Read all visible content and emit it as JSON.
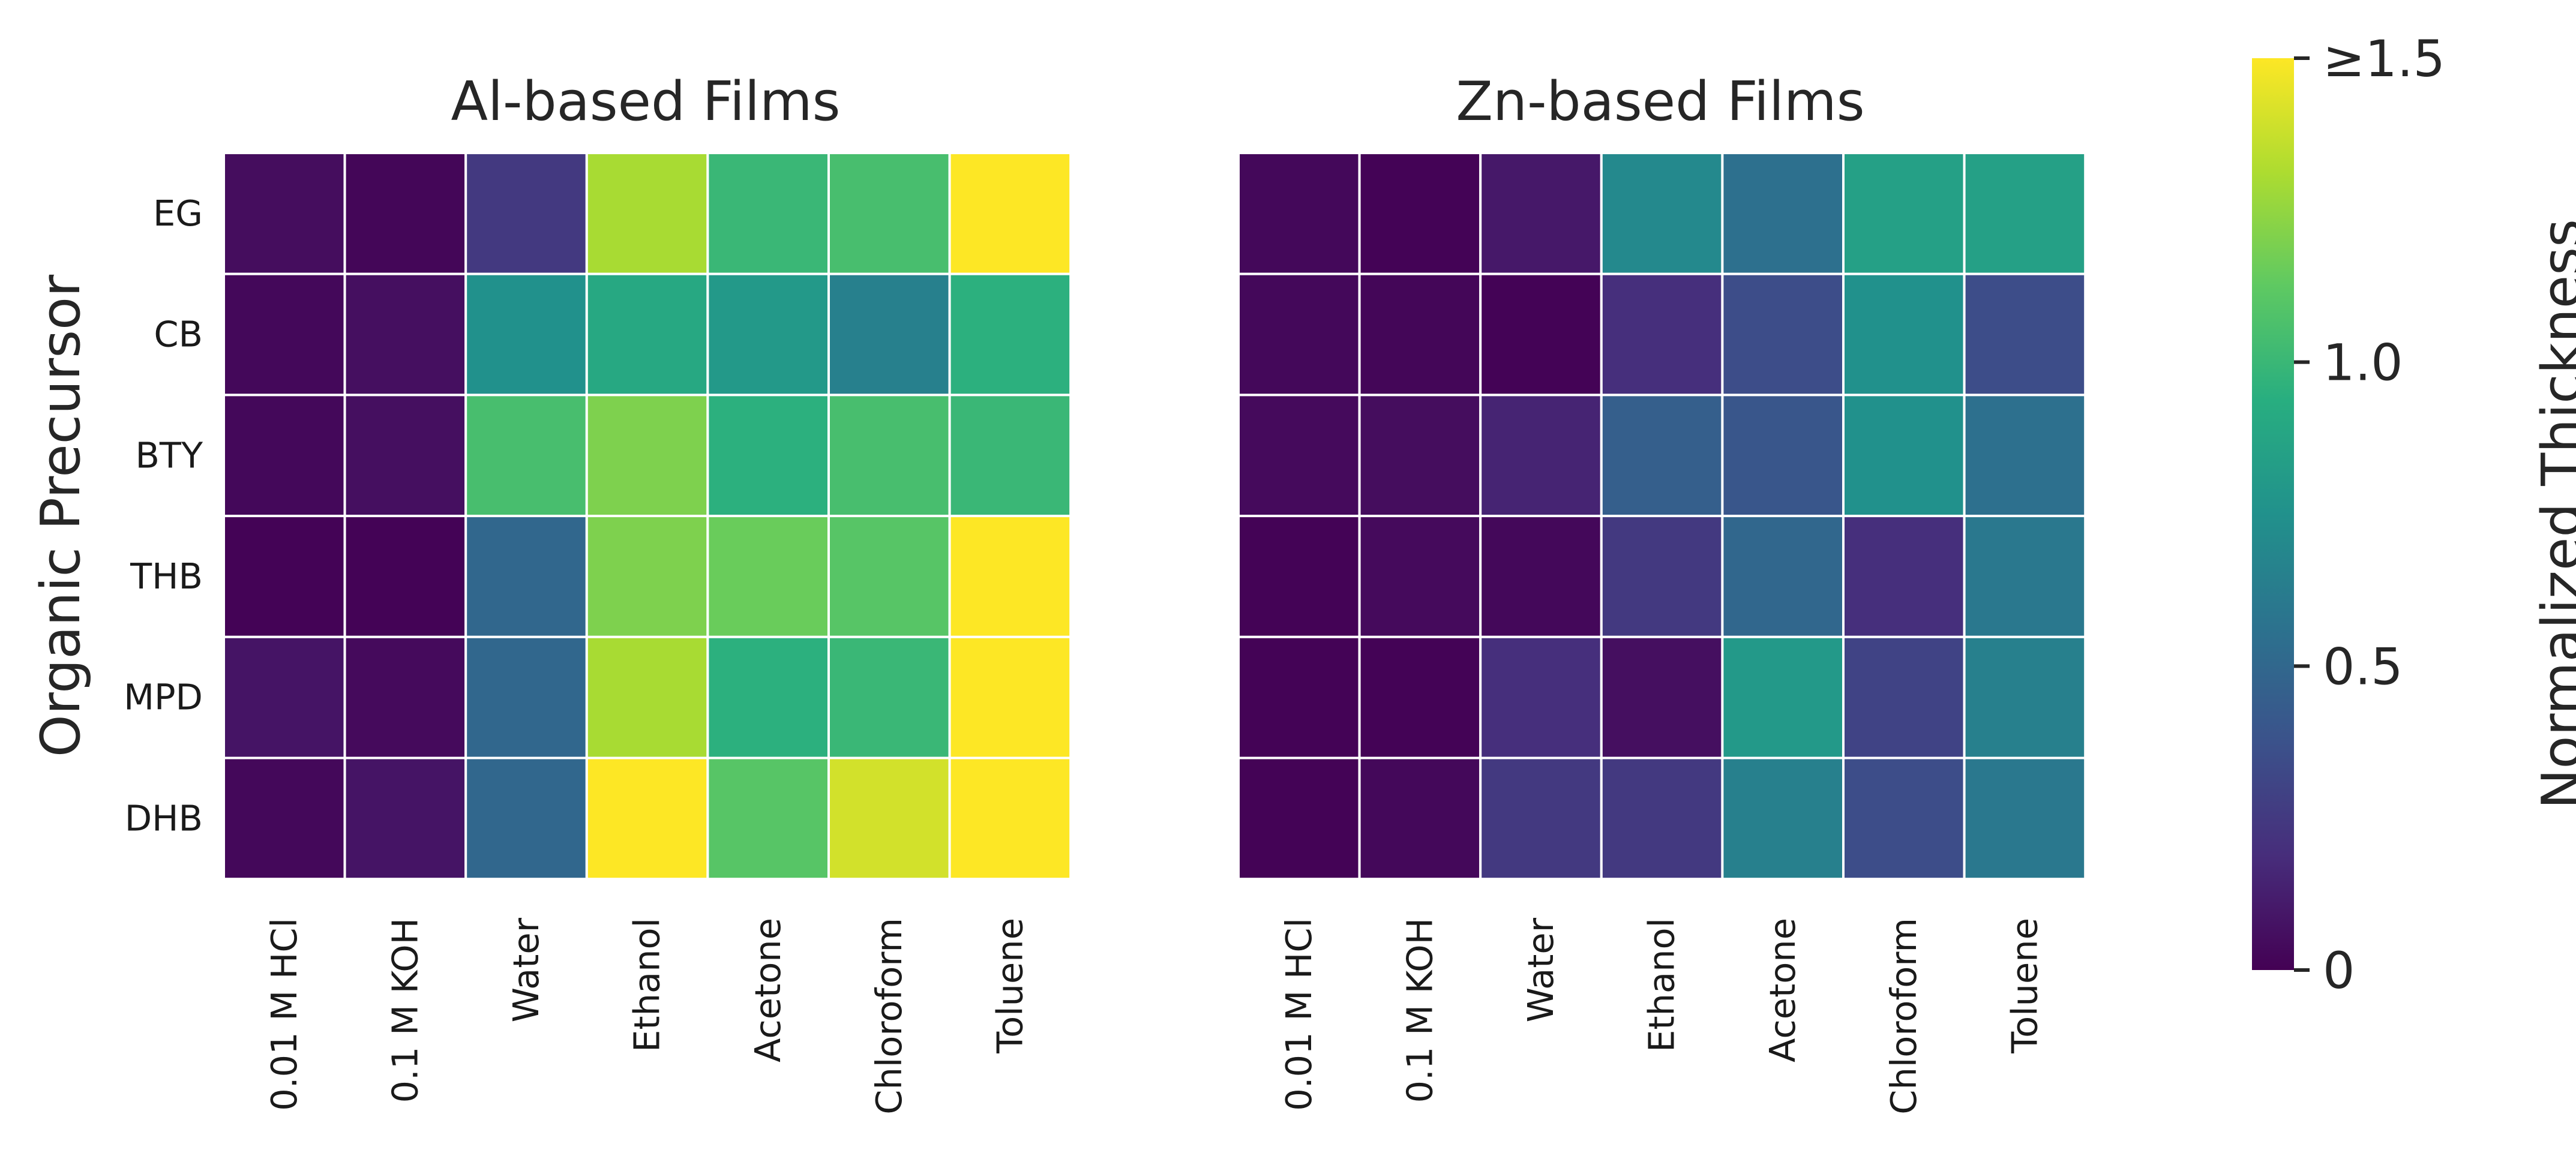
{
  "chart_data": {
    "type": "heatmap",
    "rows": [
      "EG",
      "CB",
      "BTY",
      "THB",
      "MPD",
      "DHB"
    ],
    "columns": [
      "0.01 M HCl",
      "0.1 M KOH",
      "Water",
      "Ethanol",
      "Acetone",
      "Chloroform",
      "Toluene"
    ],
    "ylabel": "Organic Precursor",
    "panels": [
      {
        "title": "Al-based Films",
        "values": [
          [
            0.05,
            0.02,
            0.25,
            1.3,
            1.0,
            1.05,
            1.5
          ],
          [
            0.03,
            0.06,
            0.75,
            0.9,
            0.8,
            0.65,
            0.95
          ],
          [
            0.03,
            0.06,
            1.05,
            1.2,
            0.95,
            1.05,
            1.0
          ],
          [
            0.01,
            0.01,
            0.5,
            1.2,
            1.15,
            1.1,
            1.5
          ],
          [
            0.08,
            0.04,
            0.5,
            1.3,
            0.95,
            1.0,
            1.5
          ],
          [
            0.03,
            0.08,
            0.5,
            1.5,
            1.1,
            1.4,
            1.5
          ]
        ]
      },
      {
        "title": "Zn-based Films",
        "values": [
          [
            0.03,
            0.01,
            0.1,
            0.7,
            0.55,
            0.85,
            0.85
          ],
          [
            0.03,
            0.02,
            0.01,
            0.2,
            0.35,
            0.75,
            0.35
          ],
          [
            0.04,
            0.05,
            0.15,
            0.45,
            0.4,
            0.75,
            0.55
          ],
          [
            0.01,
            0.04,
            0.03,
            0.25,
            0.5,
            0.2,
            0.6
          ],
          [
            0.01,
            0.01,
            0.2,
            0.06,
            0.8,
            0.3,
            0.65
          ],
          [
            0.01,
            0.03,
            0.25,
            0.25,
            0.65,
            0.35,
            0.6
          ]
        ]
      }
    ],
    "colorbar": {
      "label": "Normalized Thickness",
      "colormap": "viridis",
      "range": [
        0,
        1.5
      ],
      "ticks": [
        {
          "value": 0,
          "label": "0"
        },
        {
          "value": 0.5,
          "label": "0.5"
        },
        {
          "value": 1.0,
          "label": "1.0"
        },
        {
          "value": 1.5,
          "label": "≥1.5"
        }
      ]
    }
  }
}
